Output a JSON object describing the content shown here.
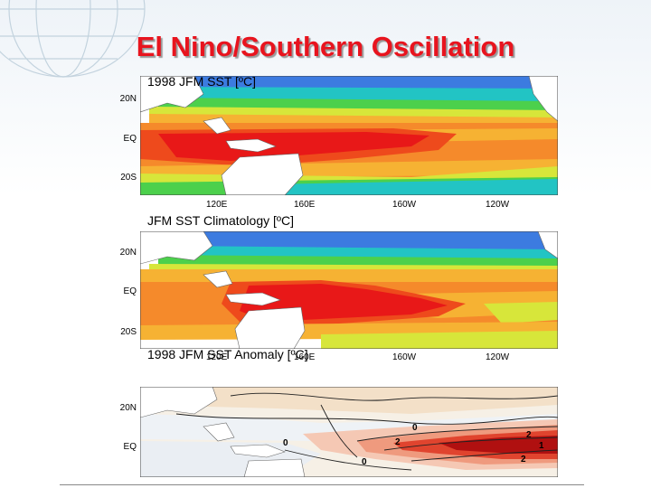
{
  "slide": {
    "title": "El Nino/Southern Oscillation"
  },
  "panels": [
    {
      "label": "1998 JFM SST [ºC]",
      "y_ticks": [
        "20N",
        "EQ",
        "20S"
      ],
      "x_ticks": [
        "120E",
        "160E",
        "160W",
        "120W"
      ]
    },
    {
      "label": "JFM SST Climatology [ºC]",
      "y_ticks": [
        "20N",
        "EQ",
        "20S"
      ],
      "x_ticks": [
        "120E",
        "160E",
        "160W",
        "120W"
      ]
    },
    {
      "label": "1998 JFM SST Anomaly [ºC]",
      "y_ticks": [
        "20N",
        "EQ"
      ],
      "contour_labels": [
        "0",
        "0",
        "2",
        "2",
        "1",
        "2",
        "0"
      ]
    }
  ],
  "colors": {
    "title": "#e8141e",
    "land": "#ffffff"
  }
}
